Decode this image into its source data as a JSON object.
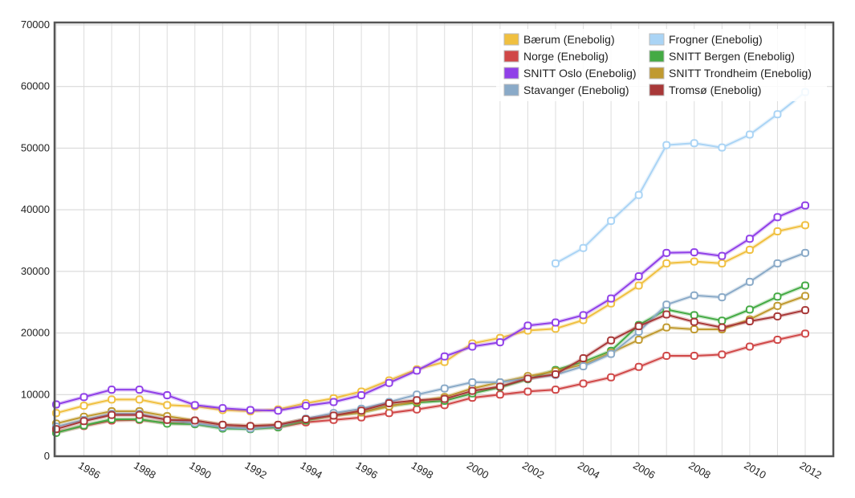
{
  "chart_data": {
    "type": "line",
    "title": "",
    "xlabel": "",
    "ylabel": "",
    "ylim": [
      0,
      70000
    ],
    "xlim": [
      1985,
      2012
    ],
    "grid": true,
    "legend_position": "top-right",
    "y_ticks": [
      "0",
      "10000",
      "20000",
      "30000",
      "40000",
      "50000",
      "60000",
      "70000"
    ],
    "x_ticks": [
      "1986",
      "1988",
      "1990",
      "1992",
      "1994",
      "1996",
      "1998",
      "2000",
      "2002",
      "2004",
      "2006",
      "2008",
      "2010",
      "2012"
    ],
    "x": [
      1985,
      1986,
      1987,
      1988,
      1989,
      1990,
      1991,
      1992,
      1993,
      1994,
      1995,
      1996,
      1997,
      1998,
      1999,
      2000,
      2001,
      2002,
      2003,
      2004,
      2005,
      2006,
      2007,
      2008,
      2009,
      2010,
      2011,
      2012
    ],
    "series": [
      {
        "name": "Bærum (Enebolig)",
        "color": "#f0c040",
        "values": [
          7000,
          8200,
          9200,
          9200,
          8300,
          8100,
          7500,
          7300,
          7600,
          8600,
          9400,
          10500,
          12300,
          14100,
          15300,
          18300,
          19200,
          20400,
          20700,
          22100,
          24800,
          27700,
          31300,
          31600,
          31300,
          33500,
          36500,
          37500
        ]
      },
      {
        "name": "Frogner (Enebolig)",
        "color": "#aad4f5",
        "values": [
          null,
          null,
          null,
          null,
          null,
          null,
          null,
          null,
          null,
          null,
          null,
          null,
          null,
          null,
          null,
          null,
          null,
          null,
          31300,
          33800,
          38200,
          42400,
          50500,
          50800,
          50100,
          52200,
          55500,
          59100
        ]
      },
      {
        "name": "Norge (Enebolig)",
        "color": "#d04848",
        "values": [
          3900,
          4900,
          5800,
          5900,
          5400,
          5300,
          4700,
          4600,
          4700,
          5500,
          5900,
          6300,
          7000,
          7600,
          8300,
          9500,
          10000,
          10500,
          10800,
          11800,
          12800,
          14500,
          16300,
          16300,
          16500,
          17800,
          18900,
          19900
        ]
      },
      {
        "name": "SNITT Bergen (Enebolig)",
        "color": "#44aa44",
        "values": [
          3800,
          5000,
          6000,
          6000,
          5300,
          5200,
          4500,
          4400,
          4700,
          5800,
          6700,
          7100,
          8200,
          8700,
          9000,
          10200,
          11200,
          12500,
          14000,
          15300,
          17100,
          21300,
          23800,
          22900,
          22000,
          23800,
          25900,
          27700
        ]
      },
      {
        "name": "SNITT Oslo (Enebolig)",
        "color": "#9040e8",
        "values": [
          8400,
          9600,
          10800,
          10800,
          9900,
          8300,
          7800,
          7500,
          7400,
          8200,
          8800,
          9900,
          11900,
          13900,
          16200,
          17800,
          18500,
          21200,
          21700,
          22900,
          25600,
          29200,
          33000,
          33100,
          32500,
          35300,
          38800,
          40700
        ]
      },
      {
        "name": "SNITT Trondheim (Enebolig)",
        "color": "#c09a30",
        "values": [
          5300,
          6400,
          7300,
          7300,
          6500,
          5800,
          5100,
          4900,
          5100,
          6000,
          6600,
          7100,
          8100,
          8900,
          9600,
          11000,
          12000,
          13000,
          13800,
          14900,
          16800,
          18900,
          20900,
          20600,
          20600,
          22200,
          24400,
          26000
        ]
      },
      {
        "name": "Stavanger (Enebolig)",
        "color": "#8aaac8",
        "values": [
          4800,
          5900,
          6900,
          6900,
          5900,
          5400,
          4700,
          4500,
          4900,
          6100,
          7000,
          7700,
          8800,
          10000,
          11000,
          12000,
          12000,
          12600,
          13200,
          14600,
          16600,
          20200,
          24600,
          26100,
          25800,
          28300,
          31300,
          33000
        ]
      },
      {
        "name": "Tromsø (Enebolig)",
        "color": "#a83838",
        "values": [
          4400,
          5700,
          6700,
          6700,
          5900,
          5800,
          5100,
          4900,
          5100,
          6000,
          6600,
          7400,
          8600,
          9100,
          9300,
          10600,
          11300,
          12600,
          13300,
          15900,
          18800,
          21100,
          23000,
          21800,
          20900,
          21900,
          22700,
          23700
        ]
      }
    ]
  }
}
